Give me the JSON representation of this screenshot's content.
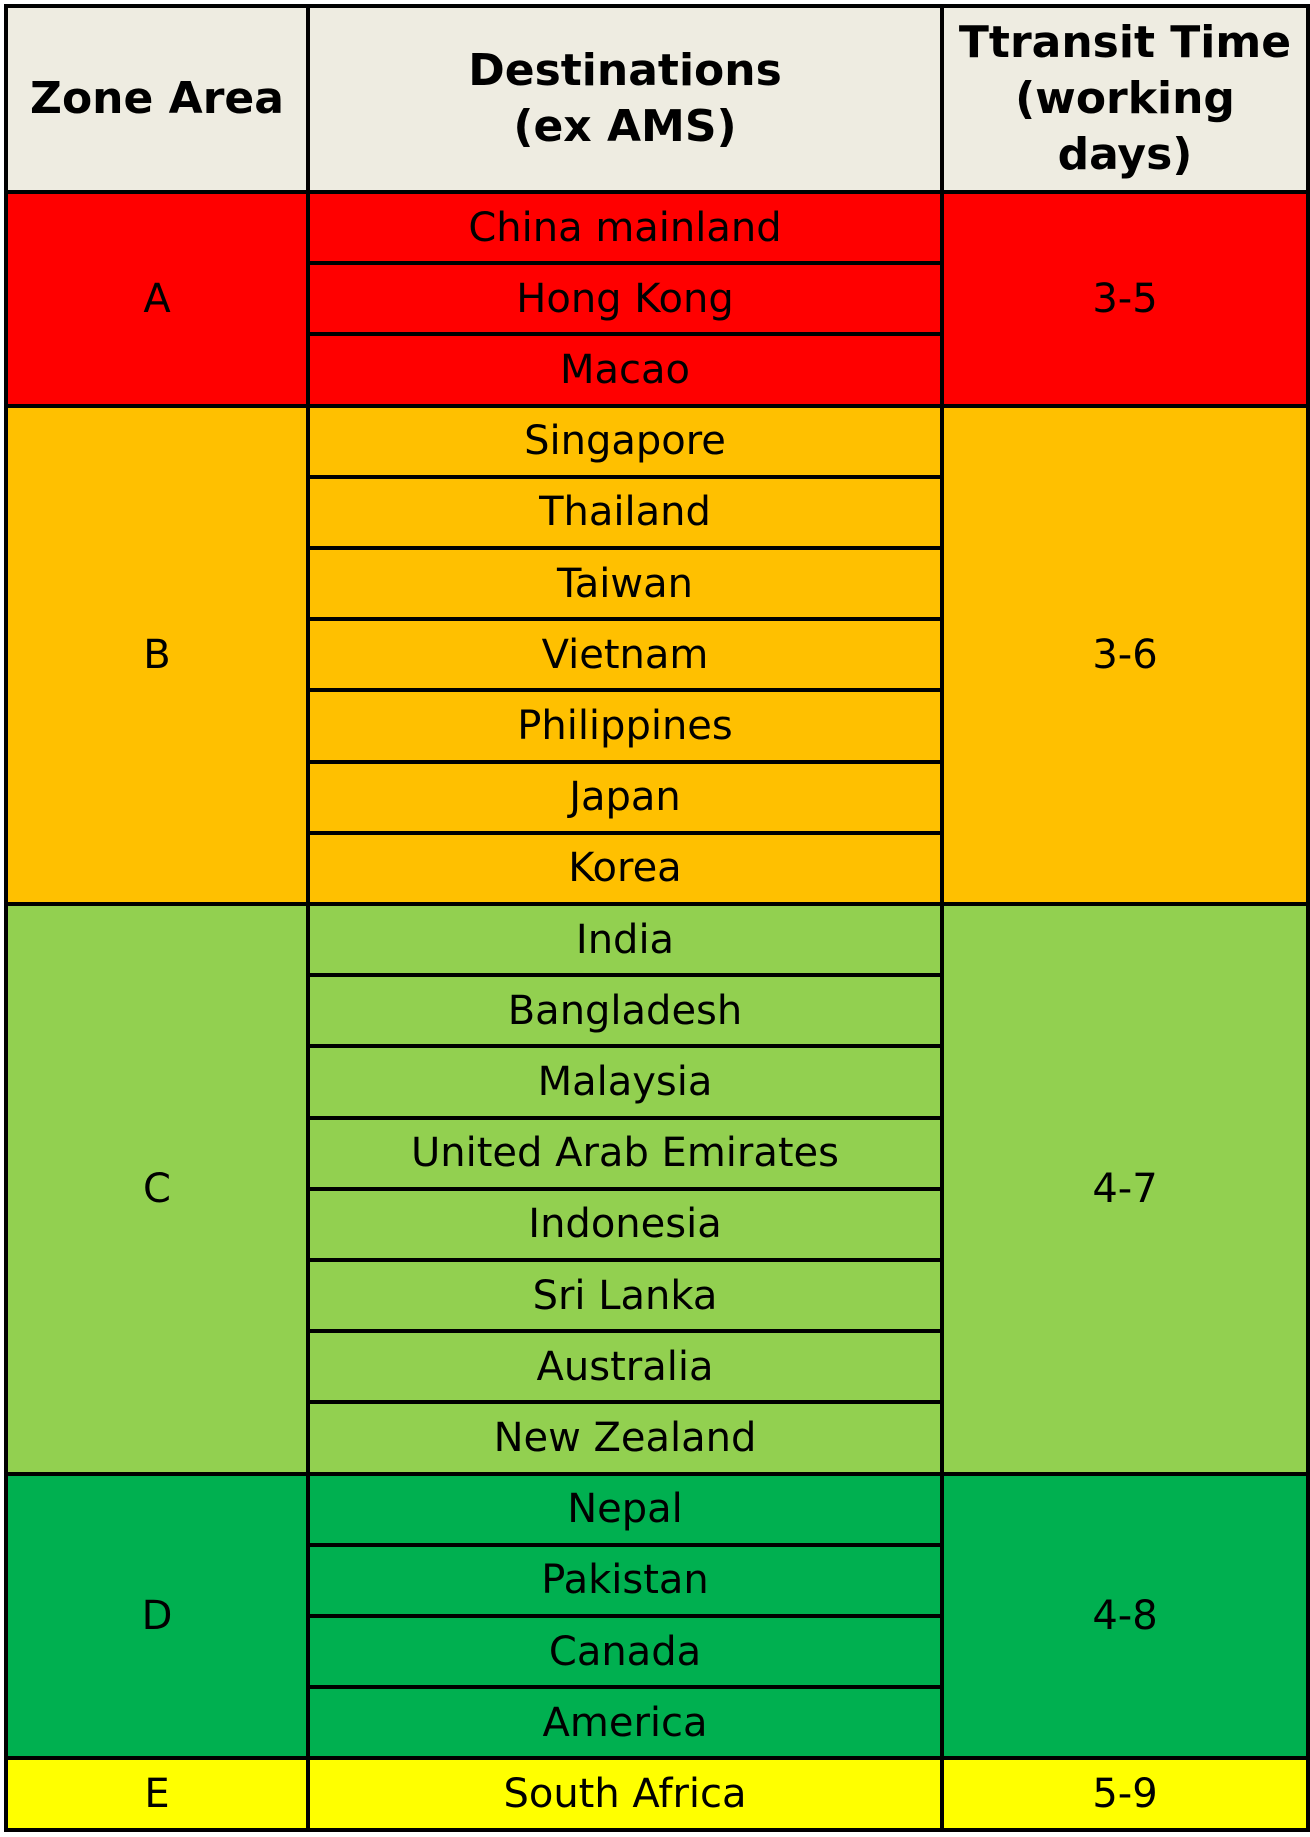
{
  "headers": {
    "zone": "Zone Area",
    "dest_line1": "Destinations",
    "dest_line2": "(ex AMS)",
    "transit_line1": "Ttransit Time",
    "transit_line2": "(working days)"
  },
  "colors": {
    "header_bg": "#eeece1",
    "A": "#ff0000",
    "B": "#ffc000",
    "C": "#92d050",
    "D": "#00b050",
    "E": "#ffff00"
  },
  "zones": [
    {
      "zone": "A",
      "transit": "3-5",
      "destinations": [
        "China mainland",
        "Hong Kong",
        "Macao"
      ]
    },
    {
      "zone": "B",
      "transit": "3-6",
      "destinations": [
        "Singapore",
        "Thailand",
        "Taiwan",
        "Vietnam",
        "Philippines",
        "Japan",
        "Korea"
      ]
    },
    {
      "zone": "C",
      "transit": "4-7",
      "destinations": [
        "India",
        "Bangladesh",
        "Malaysia",
        "United Arab Emirates",
        "Indonesia",
        "Sri Lanka",
        "Australia",
        "New Zealand"
      ]
    },
    {
      "zone": "D",
      "transit": "4-8",
      "destinations": [
        "Nepal",
        "Pakistan",
        "Canada",
        "America"
      ]
    },
    {
      "zone": "E",
      "transit": "5-9",
      "destinations": [
        "South Africa"
      ]
    }
  ]
}
